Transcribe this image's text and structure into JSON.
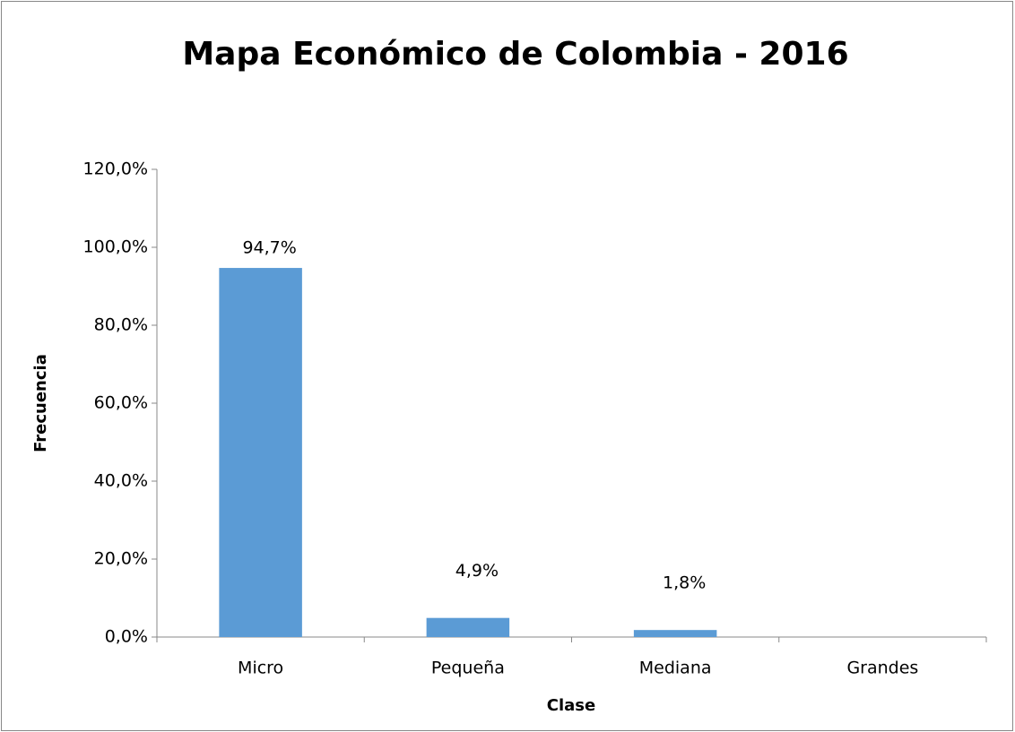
{
  "chart_data": {
    "type": "bar",
    "title": "Mapa Económico de Colombia - 2016",
    "x_label": "Clase",
    "y_label": "Frecuencia",
    "categories": [
      "Micro",
      "Pequeña",
      "Mediana",
      "Grandes"
    ],
    "values": [
      94.7,
      4.9,
      1.8,
      0
    ],
    "value_labels": [
      "94,7%",
      "4,9%",
      "1,8%",
      null
    ],
    "color": "#5b9bd5",
    "ylim": [
      0,
      120
    ],
    "yticks": [
      {
        "value": 0,
        "label": "0,0%"
      },
      {
        "value": 20,
        "label": "20,0%"
      },
      {
        "value": 40,
        "label": "40,0%"
      },
      {
        "value": 60,
        "label": "60,0%"
      },
      {
        "value": 80,
        "label": "80,0%"
      },
      {
        "value": 100,
        "label": "100,0%"
      },
      {
        "value": 120,
        "label": "120,0%"
      }
    ],
    "grid": false
  }
}
